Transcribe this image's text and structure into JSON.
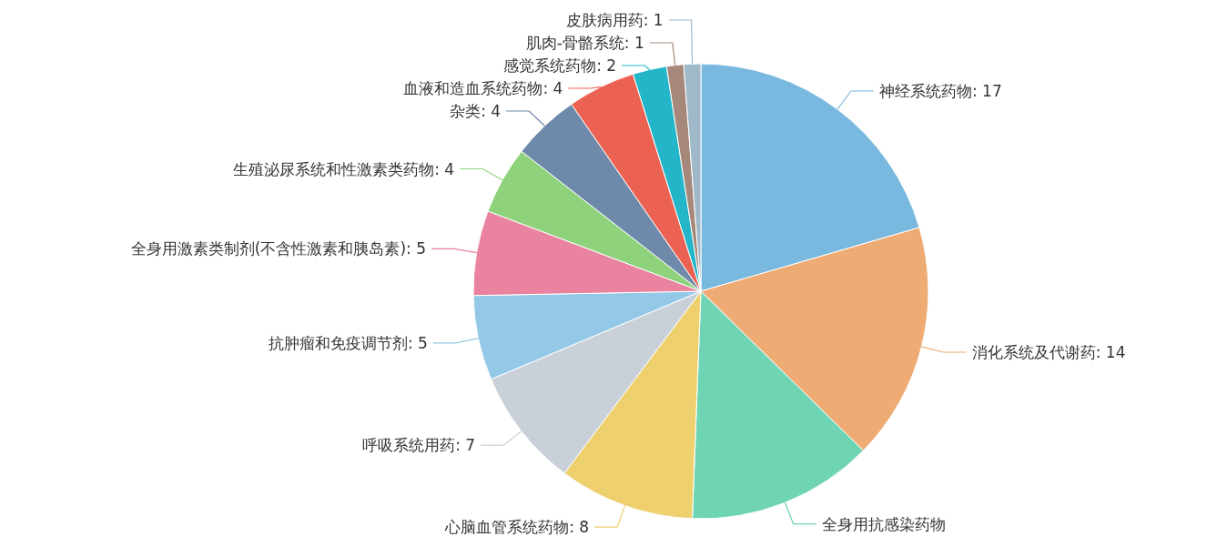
{
  "chart_data": {
    "type": "pie",
    "categories": [
      "神经系统药物",
      "消化系统及代谢药",
      "全身用抗感染药物",
      "心脑血管系统药物",
      "呼吸系统用药",
      "抗肿瘤和免疫调节剂",
      "全身用激素类制剂(不含性激素和胰岛素)",
      "生殖泌尿系统和性激素类药物",
      "杂类",
      "血液和造血系统药物",
      "感觉系统药物",
      "肌肉-骨骼系统",
      "皮肤病用药"
    ],
    "values": [
      17,
      14,
      11,
      8,
      7,
      5,
      5,
      4,
      4,
      4,
      2,
      1,
      1
    ],
    "value_labels": [
      "17",
      "14",
      null,
      "8",
      "7",
      "5",
      "5",
      "4",
      "4",
      "4",
      "2",
      "1",
      "1"
    ],
    "colors": [
      "#79b8df",
      "#eeab73",
      "#6fd4b4",
      "#efd06e",
      "#c9d0d8",
      "#93c9e6",
      "#e9839f",
      "#8ed27c",
      "#6e89a9",
      "#eb6253",
      "#24b6c8",
      "#a5887a",
      "#9fb9c9"
    ]
  }
}
